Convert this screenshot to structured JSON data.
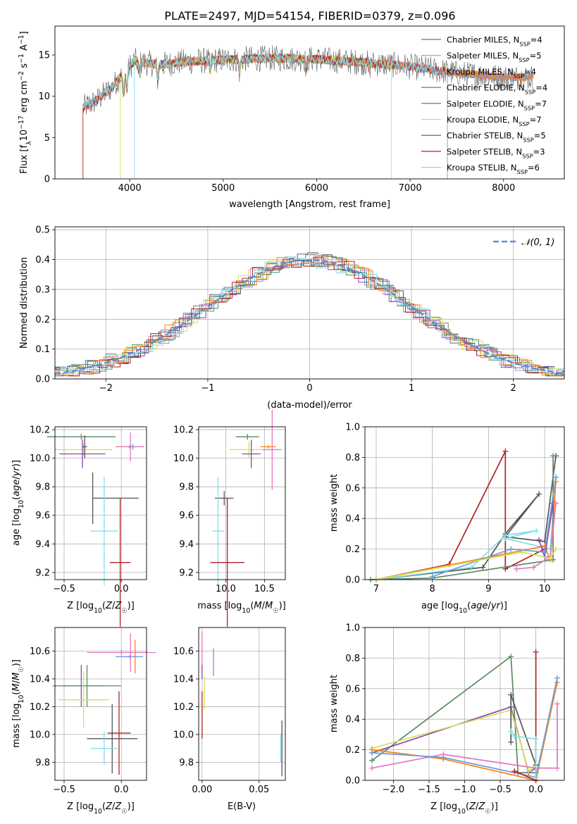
{
  "figure_title": "PLATE=2497, MJD=54154, FIBERID=0379, z=0.096",
  "colors": {
    "chabrier_miles": "#2f8f88",
    "salpeter_miles": "#e377c2",
    "kroupa_miles": "#6b9be0",
    "chabrier_elodie": "#5a8a62",
    "salpeter_elodie": "#8e44ad",
    "kroupa_elodie": "#d4e157",
    "chabrier_stelib": "#555555",
    "salpeter_stelib": "#b22222",
    "kroupa_stelib": "#80deea",
    "orange": "#ff7f0e",
    "normal_curve": "#5a8fd6"
  },
  "chart_data": [
    {
      "id": "spectrum",
      "type": "line",
      "xlabel": "wavelength [Angstrom, rest frame]",
      "ylabel": "Flux [f",
      "ylabel_parts": [
        "Flux [f",
        "λ",
        "10",
        "−17",
        " erg cm",
        "−2",
        " s",
        "−1",
        " A",
        "−1",
        "]"
      ],
      "xlim": [
        3200,
        8650
      ],
      "ylim": [
        0,
        18.5
      ],
      "xticks": [
        4000,
        5000,
        6000,
        7000,
        8000
      ],
      "yticks": [
        0,
        5,
        10,
        15
      ],
      "grid": false,
      "legend_position": "upper-right",
      "series": [
        {
          "name": "Chabrier MILES",
          "nssp": "4",
          "color_key": "chabrier_miles"
        },
        {
          "name": "Salpeter MILES",
          "nssp": "5",
          "color_key": "salpeter_miles"
        },
        {
          "name": "Kroupa MILES",
          "nssp": "4",
          "color_key": "kroupa_miles"
        },
        {
          "name": "Chabrier ELODIE",
          "nssp": "4",
          "color_key": "chabrier_elodie"
        },
        {
          "name": "Salpeter ELODIE",
          "nssp": "7",
          "color_key": "salpeter_elodie"
        },
        {
          "name": "Kroupa ELODIE",
          "nssp": "7",
          "color_key": "kroupa_elodie"
        },
        {
          "name": "Chabrier STELIB",
          "nssp": "5",
          "color_key": "chabrier_stelib"
        },
        {
          "name": "Salpeter STELIB",
          "nssp": "3",
          "color_key": "salpeter_stelib"
        },
        {
          "name": "Kroupa STELIB",
          "nssp": "6",
          "color_key": "kroupa_stelib"
        }
      ],
      "continuum": [
        [
          3500,
          8.6
        ],
        [
          3650,
          9.5
        ],
        [
          3800,
          11
        ],
        [
          3950,
          13
        ],
        [
          4050,
          14.3
        ],
        [
          4300,
          13.8
        ],
        [
          4600,
          14.2
        ],
        [
          5000,
          14.4
        ],
        [
          5500,
          14.6
        ],
        [
          6000,
          14.5
        ],
        [
          6500,
          14.1
        ],
        [
          7000,
          13.6
        ],
        [
          7500,
          12.8
        ],
        [
          8000,
          12.3
        ],
        [
          8300,
          12.3
        ]
      ]
    },
    {
      "id": "residuals",
      "type": "line",
      "xlabel": "(data-model)/error",
      "ylabel": "Normed distribution",
      "xlim": [
        -2.5,
        2.5
      ],
      "ylim": [
        0,
        0.51
      ],
      "xticks": [
        -2,
        -1,
        0,
        1,
        2
      ],
      "xtick_labels": [
        "−2",
        "−1",
        "0",
        "1",
        "2"
      ],
      "yticks": [
        0.0,
        0.1,
        0.2,
        0.3,
        0.4,
        0.5
      ],
      "grid": true,
      "legend_position": "upper-right",
      "legend": "𝒩(0, 1)",
      "normal": {
        "mean": 0.0,
        "sigma": 1.0
      }
    },
    {
      "id": "age_vs_Z",
      "type": "scatter",
      "xlabel": "Z [log10(Z/Z☉)]",
      "ylabel": "age [log10(age/yr)]",
      "xlim": [
        -0.58,
        0.22
      ],
      "ylim": [
        9.15,
        10.22
      ],
      "xticks": [
        -0.5,
        0.0
      ],
      "yticks": [
        9.2,
        9.4,
        9.6,
        9.8,
        10.0,
        10.2
      ],
      "grid": true,
      "points": [
        {
          "c": "chabrier_elodie",
          "x": -0.35,
          "y": 10.15,
          "xe": 0.3,
          "ye": 0.02
        },
        {
          "c": "kroupa_elodie",
          "x": -0.33,
          "y": 10.06,
          "xe": 0.25,
          "ye": 0.04
        },
        {
          "c": "salpeter_elodie",
          "x": -0.34,
          "y": 10.03,
          "xe": 0.2,
          "ye": 0.1
        },
        {
          "c": "chabrier_stelib",
          "x": -0.32,
          "y": 10.08,
          "xe": 0.02,
          "ye": 0.08
        },
        {
          "c": "orange",
          "x": 0.07,
          "y": 10.08,
          "xe": 0.12,
          "ye": 0.01
        },
        {
          "c": "salpeter_miles",
          "x": 0.08,
          "y": 10.08,
          "xe": 0.12,
          "ye": 0.1
        },
        {
          "c": "kroupa_miles",
          "x": 0.1,
          "y": 10.08,
          "xe": 0.02,
          "ye": 0.02
        },
        {
          "c": "chabrier_stelib",
          "x": -0.25,
          "y": 9.72,
          "xe": 0.0,
          "ye": 0.18
        },
        {
          "c": "chabrier_stelib",
          "x": -0.05,
          "y": 9.72,
          "xe": 0.2,
          "ye": 0.0
        },
        {
          "c": "kroupa_stelib",
          "x": -0.15,
          "y": 9.49,
          "xe": 0.12,
          "ye": 0.38
        },
        {
          "c": "salpeter_stelib",
          "x": -0.01,
          "y": 9.27,
          "xe": 0.09,
          "ye": 0.45
        }
      ]
    },
    {
      "id": "age_vs_mass",
      "type": "scatter",
      "xlabel": "mass [log10(M/M☉)]",
      "ylabel": "",
      "xlim": [
        9.65,
        10.77
      ],
      "ylim": [
        9.15,
        10.22
      ],
      "xticks": [
        10.0,
        10.5
      ],
      "yticks": [
        9.2,
        9.4,
        9.6,
        9.8,
        10.0,
        10.2
      ],
      "grid": true,
      "points": [
        {
          "c": "chabrier_elodie",
          "x": 10.28,
          "y": 10.15,
          "xe": 0.15,
          "ye": 0.02
        },
        {
          "c": "kroupa_elodie",
          "x": 10.3,
          "y": 10.06,
          "xe": 0.25,
          "ye": 0.06
        },
        {
          "c": "salpeter_elodie",
          "x": 10.33,
          "y": 10.03,
          "xe": 0.12,
          "ye": 0.1
        },
        {
          "c": "orange",
          "x": 10.55,
          "y": 10.08,
          "xe": 0.1,
          "ye": 0.01
        },
        {
          "c": "salpeter_miles",
          "x": 10.6,
          "y": 10.06,
          "xe": 0.12,
          "ye": 0.28
        },
        {
          "c": "chabrier_stelib",
          "x": 9.98,
          "y": 9.72,
          "xe": 0.12,
          "ye": 0.05
        },
        {
          "c": "kroupa_stelib",
          "x": 9.9,
          "y": 9.49,
          "xe": 0.08,
          "ye": 0.38
        },
        {
          "c": "salpeter_stelib",
          "x": 10.02,
          "y": 9.27,
          "xe": 0.22,
          "ye": 0.45
        }
      ]
    },
    {
      "id": "weight_vs_age",
      "type": "line",
      "xlabel": "age [log10(age/yr)]",
      "ylabel": "mass weight",
      "xlim": [
        6.8,
        10.35
      ],
      "ylim": [
        0,
        1.0
      ],
      "xticks": [
        7,
        8,
        9,
        10
      ],
      "yticks": [
        0.0,
        0.2,
        0.4,
        0.6,
        0.8,
        1.0
      ],
      "grid": true,
      "series": [
        {
          "c": "salpeter_stelib",
          "pts": [
            [
              7.0,
              0.0
            ],
            [
              8.3,
              0.1
            ],
            [
              9.3,
              0.84
            ],
            [
              9.3,
              0.07
            ],
            [
              10.0,
              0.2
            ]
          ]
        },
        {
          "c": "chabrier_stelib",
          "pts": [
            [
              7.0,
              0.0
            ],
            [
              8.9,
              0.08
            ],
            [
              9.3,
              0.3
            ],
            [
              9.9,
              0.56
            ],
            [
              9.3,
              0.28
            ],
            [
              10.0,
              0.25
            ],
            [
              10.2,
              0.81
            ]
          ]
        },
        {
          "c": "kroupa_stelib",
          "pts": [
            [
              7.0,
              0.0
            ],
            [
              8.7,
              0.08
            ],
            [
              9.3,
              0.29
            ],
            [
              9.85,
              0.32
            ],
            [
              9.3,
              0.27
            ],
            [
              10.1,
              0.2
            ],
            [
              10.2,
              0.67
            ]
          ]
        },
        {
          "c": "orange",
          "pts": [
            [
              7.0,
              0.0
            ],
            [
              10.0,
              0.22
            ],
            [
              10.1,
              0.13
            ],
            [
              10.2,
              0.64
            ]
          ]
        },
        {
          "c": "chabrier_elodie",
          "pts": [
            [
              6.9,
              0.0
            ],
            [
              8.0,
              0.01
            ],
            [
              10.15,
              0.13
            ],
            [
              10.15,
              0.81
            ]
          ]
        },
        {
          "c": "salpeter_elodie",
          "pts": [
            [
              9.9,
              0.26
            ],
            [
              10.0,
              0.15
            ],
            [
              10.15,
              0.5
            ]
          ]
        },
        {
          "c": "kroupa_miles",
          "pts": [
            [
              8.0,
              0.02
            ],
            [
              9.4,
              0.2
            ],
            [
              10.0,
              0.18
            ],
            [
              10.2,
              0.67
            ]
          ]
        },
        {
          "c": "salpeter_miles",
          "pts": [
            [
              9.5,
              0.07
            ],
            [
              9.8,
              0.08
            ],
            [
              10.1,
              0.15
            ],
            [
              10.2,
              0.5
            ]
          ]
        },
        {
          "c": "kroupa_elodie",
          "pts": [
            [
              7.0,
              0.0
            ],
            [
              9.6,
              0.18
            ],
            [
              10.1,
              0.14
            ],
            [
              10.2,
              0.2
            ]
          ]
        }
      ]
    },
    {
      "id": "mass_vs_Z",
      "type": "scatter",
      "xlabel": "Z [log10(Z/Z☉)]",
      "ylabel": "mass [log10(M/M☉)]",
      "xlim": [
        -0.58,
        0.22
      ],
      "ylim": [
        9.67,
        10.77
      ],
      "xticks": [
        -0.5,
        0.0
      ],
      "yticks": [
        9.8,
        10.0,
        10.2,
        10.4,
        10.6
      ],
      "grid": true,
      "points": [
        {
          "c": "salpeter_miles",
          "x": 0.0,
          "y": 10.59,
          "xe": 0.3,
          "ye": 0.02
        },
        {
          "c": "salpeter_miles",
          "x": 0.08,
          "y": 10.59,
          "xe": 0.02,
          "ye": 0.14
        },
        {
          "c": "orange",
          "x": 0.12,
          "y": 10.56,
          "xe": 0.02,
          "ye": 0.12
        },
        {
          "c": "kroupa_miles",
          "x": 0.07,
          "y": 10.56,
          "xe": 0.12,
          "ye": 0.01
        },
        {
          "c": "salpeter_elodie",
          "x": -0.35,
          "y": 10.35,
          "xe": 0.2,
          "ye": 0.15
        },
        {
          "c": "chabrier_elodie",
          "x": -0.3,
          "y": 10.35,
          "xe": 0.3,
          "ye": 0.15
        },
        {
          "c": "kroupa_elodie",
          "x": -0.33,
          "y": 10.25,
          "xe": 0.22,
          "ye": 0.2
        },
        {
          "c": "salpeter_stelib",
          "x": -0.02,
          "y": 10.01,
          "xe": 0.1,
          "ye": 0.3
        },
        {
          "c": "chabrier_stelib",
          "x": -0.08,
          "y": 9.97,
          "xe": 0.22,
          "ye": 0.25
        },
        {
          "c": "kroupa_stelib",
          "x": -0.15,
          "y": 9.9,
          "xe": 0.12,
          "ye": 0.12
        }
      ]
    },
    {
      "id": "mass_vs_ebv",
      "type": "scatter",
      "xlabel": "E(B-V)",
      "ylabel": "",
      "xlim": [
        -0.003,
        0.073
      ],
      "ylim": [
        9.67,
        10.77
      ],
      "xticks": [
        0.0,
        0.05
      ],
      "xtick_labels": [
        "0.00",
        "0.05"
      ],
      "yticks": [
        9.8,
        10.0,
        10.2,
        10.4,
        10.6
      ],
      "grid": true,
      "points": [
        {
          "c": "salpeter_miles",
          "x": 0.0,
          "y": 10.6,
          "xe": 0.0,
          "ye": 0.14
        },
        {
          "c": "salpeter_elodie",
          "x": 0.0,
          "y": 10.45,
          "xe": 0.0,
          "ye": 0.05
        },
        {
          "c": "kroupa_elodie",
          "x": 0.002,
          "y": 10.3,
          "xe": 0.0,
          "ye": 0.12
        },
        {
          "c": "kroupa_miles",
          "x": 0.01,
          "y": 10.52,
          "xe": 0.0,
          "ye": 0.1
        },
        {
          "c": "salpeter_stelib",
          "x": 0.0,
          "y": 10.14,
          "xe": 0.0,
          "ye": 0.17
        },
        {
          "c": "kroupa_stelib",
          "x": 0.069,
          "y": 9.9,
          "xe": 0.0,
          "ye": 0.1
        },
        {
          "c": "chabrier_stelib",
          "x": 0.07,
          "y": 9.9,
          "xe": 0.0,
          "ye": 0.2
        }
      ]
    },
    {
      "id": "weight_vs_Z",
      "type": "line",
      "xlabel": "Z [log10(Z/Z☉)]",
      "ylabel": "mass weight",
      "xlim": [
        -2.4,
        0.4
      ],
      "ylim": [
        0,
        1.0
      ],
      "xticks": [
        -2.0,
        -1.5,
        -1.0,
        -0.5,
        0.0
      ],
      "xtick_labels": [
        "−2.0",
        "−1.5",
        "−1.0",
        "−0.5",
        "0.0"
      ],
      "yticks": [
        0.0,
        0.2,
        0.4,
        0.6,
        0.8,
        1.0
      ],
      "grid": true,
      "series": [
        {
          "c": "chabrier_elodie",
          "pts": [
            [
              -2.3,
              0.13
            ],
            [
              -0.35,
              0.81
            ],
            [
              -0.25,
              0.05
            ],
            [
              0.0,
              0.05
            ]
          ]
        },
        {
          "c": "salpeter_elodie",
          "pts": [
            [
              -2.3,
              0.18
            ],
            [
              -0.35,
              0.48
            ],
            [
              -0.1,
              0.05
            ],
            [
              0.0,
              0.08
            ]
          ]
        },
        {
          "c": "kroupa_elodie",
          "pts": [
            [
              -2.3,
              0.21
            ],
            [
              -0.35,
              0.46
            ],
            [
              -0.1,
              0.06
            ],
            [
              0.0,
              0.1
            ]
          ]
        },
        {
          "c": "salpeter_miles",
          "pts": [
            [
              -2.3,
              0.08
            ],
            [
              -1.3,
              0.17
            ],
            [
              0.0,
              0.08
            ],
            [
              0.3,
              0.08
            ],
            [
              0.3,
              0.5
            ]
          ]
        },
        {
          "c": "orange",
          "pts": [
            [
              -2.3,
              0.2
            ],
            [
              -1.3,
              0.14
            ],
            [
              0.0,
              0.0
            ],
            [
              0.3,
              0.64
            ]
          ]
        },
        {
          "c": "kroupa_miles",
          "pts": [
            [
              -2.3,
              0.18
            ],
            [
              -1.3,
              0.15
            ],
            [
              0.0,
              0.02
            ],
            [
              0.3,
              0.67
            ]
          ]
        },
        {
          "c": "salpeter_stelib",
          "pts": [
            [
              -0.3,
              0.06
            ],
            [
              0.0,
              0.0
            ],
            [
              0.0,
              0.84
            ],
            [
              0.0,
              0.0
            ]
          ]
        },
        {
          "c": "chabrier_stelib",
          "pts": [
            [
              -0.35,
              0.25
            ],
            [
              -0.35,
              0.56
            ],
            [
              0.0,
              0.1
            ],
            [
              0.0,
              0.02
            ]
          ]
        },
        {
          "c": "kroupa_stelib",
          "pts": [
            [
              -0.35,
              0.32
            ],
            [
              -0.3,
              0.29
            ],
            [
              0.0,
              0.27
            ],
            [
              0.0,
              0.02
            ]
          ]
        }
      ]
    }
  ]
}
